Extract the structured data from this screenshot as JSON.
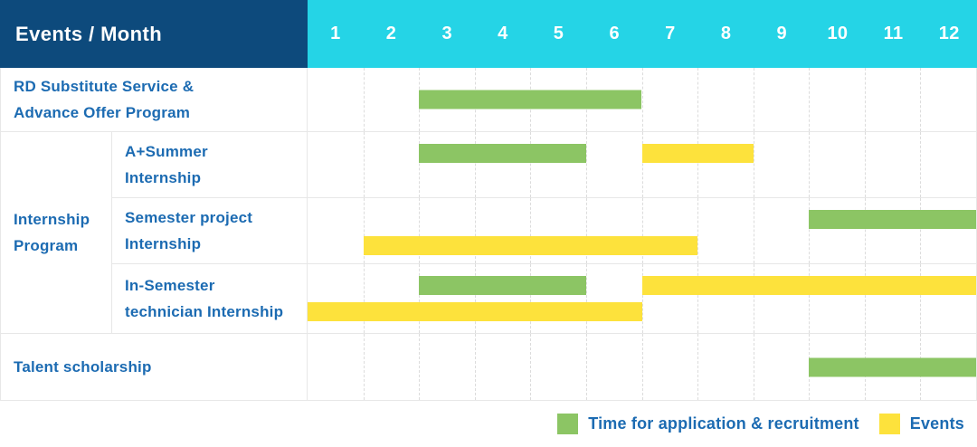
{
  "colors": {
    "header_bg": "#0d4a7c",
    "months_bg": "#25d4e6",
    "header_text": "#ffffff",
    "label_text": "#1c6bb2",
    "grid_line": "#e7e7e7",
    "month_line": "#dcdcdc",
    "recruitment": "#8cc564",
    "event": "#fde23c"
  },
  "chart_data": {
    "type": "gantt",
    "title": "Events / Month",
    "x_unit": "month",
    "x_range": [
      1,
      12
    ],
    "x_ticks": [
      "1",
      "2",
      "3",
      "4",
      "5",
      "6",
      "7",
      "8",
      "9",
      "10",
      "11",
      "12"
    ],
    "group_label": "Internship Program",
    "rows": [
      {
        "label": "RD Substitute Service & Advance Offer Program",
        "label_lines": [
          "RD Substitute Service &",
          "Advance Offer Program"
        ],
        "group": null,
        "bars": [
          {
            "type": "recruitment",
            "start_month": 3,
            "end_month": 6,
            "lane": "center"
          }
        ]
      },
      {
        "label": "A+Summer Internship",
        "label_lines": [
          "A+Summer",
          "Internship"
        ],
        "group": "Internship Program",
        "bars": [
          {
            "type": "recruitment",
            "start_month": 3,
            "end_month": 5,
            "lane": "top"
          },
          {
            "type": "event",
            "start_month": 7,
            "end_month": 8,
            "lane": "top"
          }
        ]
      },
      {
        "label": "Semester project Internship",
        "label_lines": [
          "Semester project",
          "Internship"
        ],
        "group": "Internship Program",
        "bars": [
          {
            "type": "recruitment",
            "start_month": 10,
            "end_month": 12,
            "lane": "top"
          },
          {
            "type": "event",
            "start_month": 2,
            "end_month": 7,
            "lane": "bottom"
          }
        ]
      },
      {
        "label": "In-Semester technician Internship",
        "label_lines": [
          "In-Semester",
          "technician Internship"
        ],
        "group": "Internship Program",
        "bars": [
          {
            "type": "recruitment",
            "start_month": 3,
            "end_month": 5,
            "lane": "top"
          },
          {
            "type": "event",
            "start_month": 7,
            "end_month": 12,
            "lane": "top"
          },
          {
            "type": "event",
            "start_month": 1,
            "end_month": 6,
            "lane": "bottom"
          }
        ]
      },
      {
        "label": "Talent scholarship",
        "label_lines": [
          "Talent scholarship"
        ],
        "group": null,
        "bars": [
          {
            "type": "recruitment",
            "start_month": 10,
            "end_month": 12,
            "lane": "center"
          }
        ]
      }
    ],
    "legend": [
      {
        "key": "recruitment",
        "color": "#8cc564",
        "label": "Time for application & recruitment"
      },
      {
        "key": "event",
        "color": "#fde23c",
        "label": "Events"
      }
    ]
  }
}
